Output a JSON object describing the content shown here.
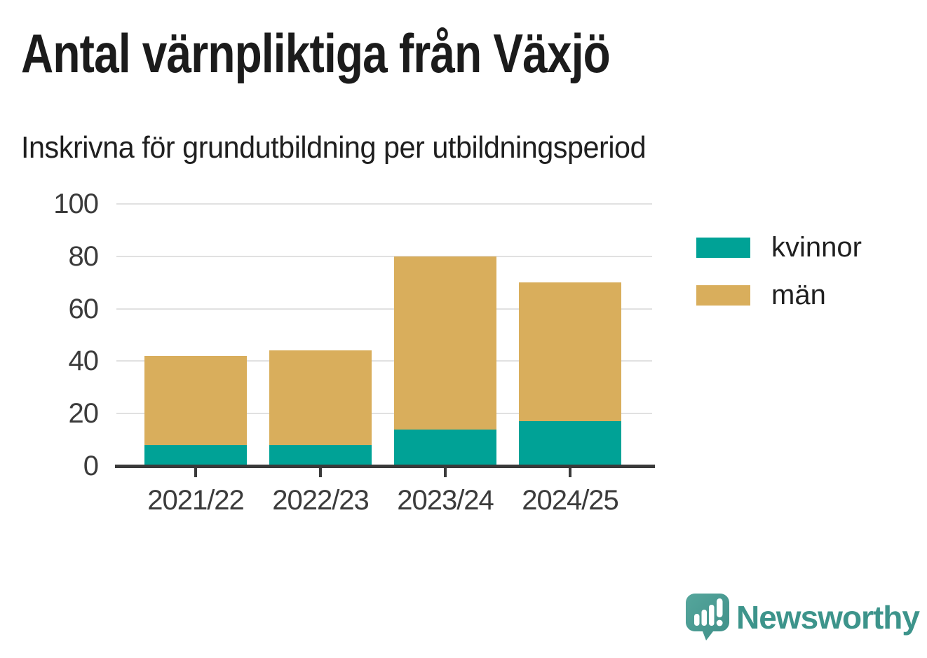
{
  "header": {
    "title": "Antal värnpliktiga från Växjö",
    "subtitle": "Inskrivna för grundutbildning per utbildningsperiod"
  },
  "chart_data": {
    "type": "bar",
    "stacked": true,
    "title": "Antal värnpliktiga från Växjö",
    "subtitle": "Inskrivna för grundutbildning per utbildningsperiod",
    "categories": [
      "2021/22",
      "2022/23",
      "2023/24",
      "2024/25"
    ],
    "series": [
      {
        "name": "kvinnor",
        "color": "#00A296",
        "values": [
          8,
          8,
          14,
          17
        ]
      },
      {
        "name": "män",
        "color": "#D9AE5C",
        "values": [
          34,
          36,
          66,
          53
        ]
      }
    ],
    "stack_totals": [
      42,
      44,
      80,
      70
    ],
    "xlabel": "",
    "ylabel": "",
    "ylim": [
      0,
      100
    ],
    "yticks": [
      0,
      20,
      40,
      60,
      80,
      100
    ],
    "grid": "horizontal",
    "legend_position": "right",
    "colors": {
      "grid": "#e1e1e1",
      "axis": "#3a3a3a",
      "tick_text": "#3b3b3b"
    }
  },
  "footer": {
    "brand": "Newsworthy",
    "brand_color": "#3D948B",
    "logo_color": "#4C9D94"
  }
}
